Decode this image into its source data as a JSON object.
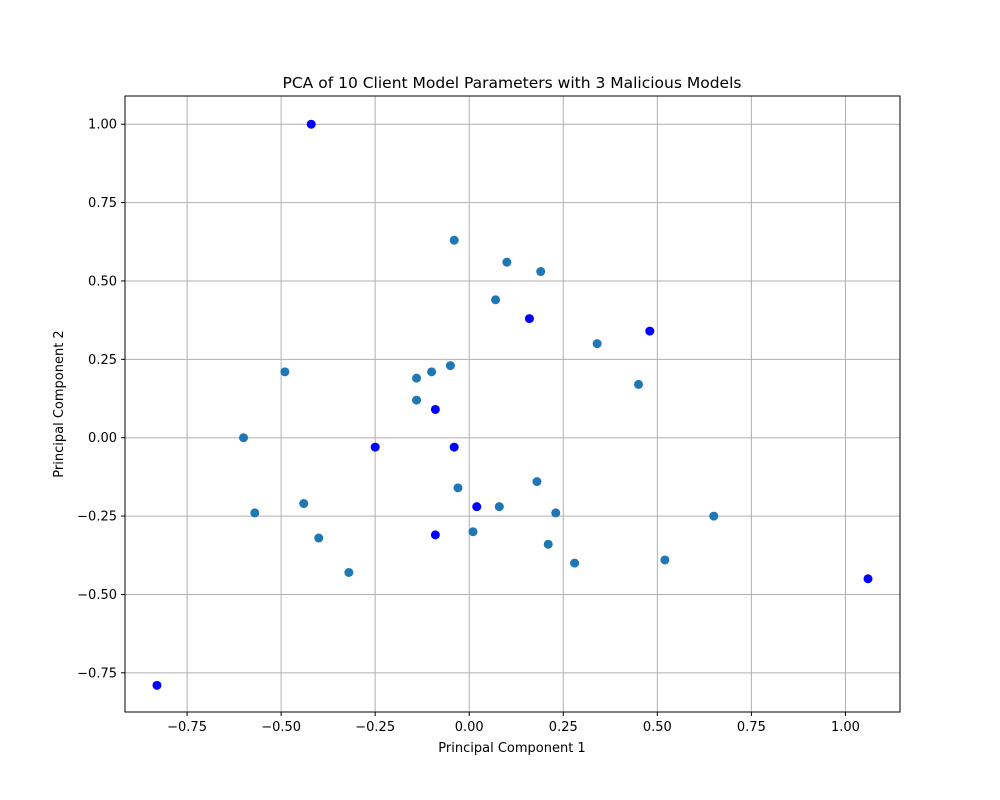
{
  "chart_data": {
    "type": "scatter",
    "title": "PCA of 10 Client Model Parameters with 3 Malicious Models",
    "xlabel": "Principal Component 1",
    "ylabel": "Principal Component 2",
    "xlim": [
      -0.915,
      1.145
    ],
    "ylim": [
      -0.875,
      1.09
    ],
    "xticks": [
      -0.75,
      -0.5,
      -0.25,
      0.0,
      0.25,
      0.5,
      0.75,
      1.0
    ],
    "xtick_labels": [
      "−0.75",
      "−0.50",
      "−0.25",
      "0.00",
      "0.25",
      "0.50",
      "0.75",
      "1.00"
    ],
    "yticks": [
      -0.75,
      -0.5,
      -0.25,
      0.0,
      0.25,
      0.5,
      0.75,
      1.0
    ],
    "ytick_labels": [
      "−0.75",
      "−0.50",
      "−0.25",
      "0.00",
      "0.25",
      "0.50",
      "0.75",
      "1.00"
    ],
    "grid": true,
    "legend": "none",
    "series": [
      {
        "color": "#1f77b4",
        "points": [
          [
            -0.04,
            0.63
          ],
          [
            0.1,
            0.56
          ],
          [
            0.19,
            0.53
          ],
          [
            0.07,
            0.44
          ],
          [
            0.34,
            0.3
          ],
          [
            0.45,
            0.17
          ],
          [
            -0.49,
            0.21
          ],
          [
            -0.05,
            0.23
          ],
          [
            -0.1,
            0.21
          ],
          [
            -0.14,
            0.19
          ],
          [
            -0.14,
            0.12
          ],
          [
            -0.6,
            0.0
          ],
          [
            -0.03,
            -0.16
          ],
          [
            0.18,
            -0.14
          ],
          [
            0.08,
            -0.22
          ],
          [
            0.23,
            -0.24
          ],
          [
            -0.44,
            -0.21
          ],
          [
            -0.57,
            -0.24
          ],
          [
            -0.4,
            -0.32
          ],
          [
            0.01,
            -0.3
          ],
          [
            0.21,
            -0.34
          ],
          [
            0.28,
            -0.4
          ],
          [
            -0.32,
            -0.43
          ],
          [
            0.52,
            -0.39
          ],
          [
            0.65,
            -0.25
          ]
        ]
      },
      {
        "color": "#0000ff",
        "points": [
          [
            -0.42,
            1.0
          ],
          [
            0.16,
            0.38
          ],
          [
            0.48,
            0.34
          ],
          [
            -0.09,
            0.09
          ],
          [
            -0.25,
            -0.03
          ],
          [
            -0.04,
            -0.03
          ],
          [
            0.02,
            -0.22
          ],
          [
            -0.09,
            -0.31
          ],
          [
            1.06,
            -0.45
          ],
          [
            -0.83,
            -0.79
          ]
        ]
      }
    ]
  }
}
